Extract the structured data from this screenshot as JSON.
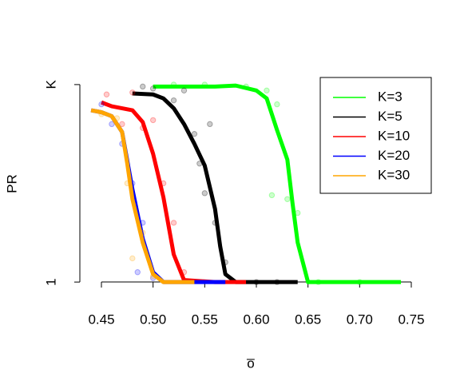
{
  "chart_data": {
    "type": "line",
    "x_label": "o̅",
    "y_label": "PR",
    "xlim": [
      0.4384,
      0.7616
    ],
    "ylim": [
      -0.04,
      1.04
    ],
    "xticks": [
      {
        "value": 0.45,
        "label": "0.45"
      },
      {
        "value": 0.5,
        "label": "0.50"
      },
      {
        "value": 0.55,
        "label": "0.55"
      },
      {
        "value": 0.6,
        "label": "0.60"
      },
      {
        "value": 0.65,
        "label": "0.65"
      },
      {
        "value": 0.7,
        "label": "0.70"
      },
      {
        "value": 0.75,
        "label": "0.75"
      }
    ],
    "yticks": [
      {
        "value": 0,
        "label": "1"
      },
      {
        "value": 1,
        "label": "K"
      }
    ],
    "legend": "topright",
    "series": [
      {
        "name": "K=3",
        "color": "#00ff00",
        "x": [
          0.5,
          0.53,
          0.56,
          0.58,
          0.6,
          0.61,
          0.62,
          0.63,
          0.635,
          0.64,
          0.65,
          0.7,
          0.74
        ],
        "values": [
          0.99,
          0.99,
          0.99,
          0.995,
          0.97,
          0.93,
          0.77,
          0.62,
          0.4,
          0.2,
          0,
          0,
          0
        ],
        "points_x": [
          0.52,
          0.55,
          0.59,
          0.61,
          0.615,
          0.62,
          0.63,
          0.64,
          0.66,
          0.7
        ],
        "points_y": [
          1.0,
          1.0,
          0.99,
          0.97,
          0.44,
          0.9,
          0.42,
          0.35,
          0.0,
          0.0
        ]
      },
      {
        "name": "K=5",
        "color": "#000000",
        "x": [
          0.48,
          0.5,
          0.51,
          0.52,
          0.53,
          0.54,
          0.55,
          0.56,
          0.565,
          0.57,
          0.58,
          0.64
        ],
        "values": [
          0.955,
          0.95,
          0.93,
          0.88,
          0.8,
          0.7,
          0.59,
          0.37,
          0.18,
          0.04,
          0,
          0
        ],
        "points_x": [
          0.49,
          0.5,
          0.52,
          0.53,
          0.54,
          0.545,
          0.55,
          0.555,
          0.56,
          0.57,
          0.6,
          0.62
        ],
        "points_y": [
          0.99,
          0.98,
          0.92,
          0.97,
          0.75,
          0.6,
          0.45,
          0.8,
          0.3,
          0.1,
          0.0,
          0.0
        ]
      },
      {
        "name": "K=10",
        "color": "#ff0000",
        "x": [
          0.45,
          0.46,
          0.47,
          0.48,
          0.49,
          0.5,
          0.51,
          0.52,
          0.53,
          0.56,
          0.59
        ],
        "values": [
          0.91,
          0.89,
          0.88,
          0.87,
          0.81,
          0.65,
          0.43,
          0.14,
          0.01,
          0,
          0
        ],
        "points_x": [
          0.455,
          0.47,
          0.48,
          0.49,
          0.5,
          0.51,
          0.52,
          0.53
        ],
        "points_y": [
          0.95,
          0.8,
          0.96,
          0.78,
          0.82,
          0.5,
          0.3,
          0.05
        ]
      },
      {
        "name": "K=20",
        "color": "#0000ff",
        "x": [
          0.44,
          0.45,
          0.46,
          0.47,
          0.48,
          0.49,
          0.5,
          0.51,
          0.57
        ],
        "values": [
          0.87,
          0.86,
          0.84,
          0.76,
          0.47,
          0.22,
          0.05,
          0,
          0
        ],
        "points_x": [
          0.45,
          0.46,
          0.47,
          0.48,
          0.485,
          0.49,
          0.5
        ],
        "points_y": [
          0.9,
          0.8,
          0.7,
          0.5,
          0.05,
          0.3,
          0.02
        ]
      },
      {
        "name": "K=30",
        "color": "#ffa500",
        "x": [
          0.44,
          0.45,
          0.46,
          0.47,
          0.475,
          0.48,
          0.49,
          0.5,
          0.51,
          0.54
        ],
        "values": [
          0.87,
          0.86,
          0.84,
          0.76,
          0.6,
          0.42,
          0.2,
          0.04,
          0,
          0
        ],
        "points_x": [
          0.45,
          0.465,
          0.475,
          0.48,
          0.49,
          0.5
        ],
        "points_y": [
          0.85,
          0.83,
          0.5,
          0.12,
          0.25,
          0.03
        ]
      }
    ]
  }
}
